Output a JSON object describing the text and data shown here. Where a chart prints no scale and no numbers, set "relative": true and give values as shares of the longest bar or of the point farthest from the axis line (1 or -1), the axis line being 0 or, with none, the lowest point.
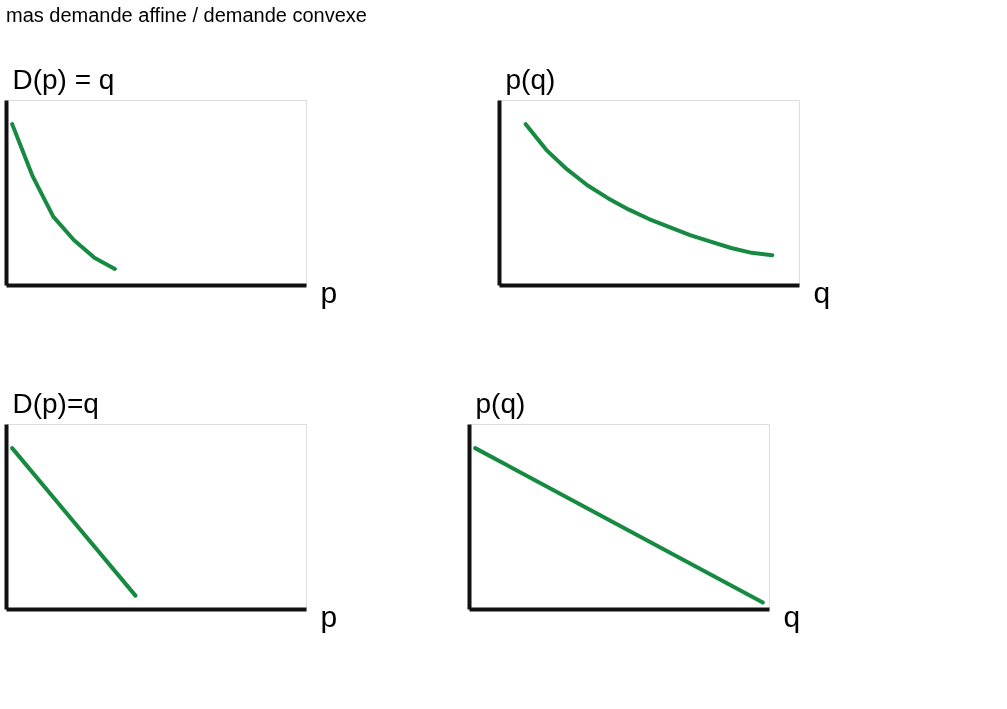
{
  "chart_data": [
    {
      "type": "line",
      "title": "mas demande affine / demande convexe",
      "relative": true,
      "ylabel": "D(p) = q",
      "xlabel": "p",
      "tick_labels": false,
      "grid": false,
      "marker": "none",
      "line_style": "solid",
      "categories": [
        null,
        null,
        null,
        null,
        null,
        null,
        null,
        null,
        null,
        null,
        null,
        null,
        null,
        null,
        null
      ],
      "series": [
        {
          "color": "#168a40",
          "values": [
            1.0,
            0.675,
            0.425,
            0.28,
            0.17,
            0.1,
            null,
            null,
            null,
            null,
            null,
            null,
            null,
            null,
            null
          ]
        }
      ]
    },
    {
      "type": "line",
      "relative": true,
      "ylabel": "p(q)",
      "xlabel": "q",
      "tick_labels": false,
      "grid": false,
      "marker": "none",
      "line_style": "solid",
      "categories": [
        null,
        null,
        null,
        null,
        null,
        null,
        null,
        null,
        null,
        null,
        null,
        null,
        null,
        null,
        null
      ],
      "series": [
        {
          "color": "#168a40",
          "values": [
            null,
            1.0,
            0.84,
            0.72,
            0.62,
            0.54,
            0.47,
            0.41,
            0.36,
            0.31,
            0.27,
            0.23,
            0.2,
            0.185,
            null
          ]
        }
      ]
    },
    {
      "type": "line",
      "relative": true,
      "ylabel": "D(p)=q",
      "xlabel": "p",
      "tick_labels": false,
      "grid": false,
      "marker": "none",
      "line_style": "solid",
      "categories": [
        null,
        null,
        null,
        null,
        null,
        null,
        null,
        null,
        null,
        null,
        null,
        null,
        null,
        null,
        null
      ],
      "series": [
        {
          "color": "#168a40",
          "values": [
            1.0,
            null,
            null,
            null,
            null,
            null,
            0.083,
            null,
            null,
            null,
            null,
            null,
            null,
            null,
            null
          ]
        }
      ]
    },
    {
      "type": "line",
      "relative": true,
      "ylabel": "p(q)",
      "xlabel": "q",
      "tick_labels": false,
      "grid": false,
      "marker": "none",
      "line_style": "solid",
      "categories": [
        null,
        null,
        null,
        null,
        null,
        null,
        null,
        null,
        null,
        null,
        null,
        null,
        null,
        null,
        null
      ],
      "series": [
        {
          "color": "#168a40",
          "values": [
            1.0,
            null,
            null,
            null,
            null,
            null,
            null,
            null,
            null,
            null,
            null,
            null,
            null,
            null,
            0.04
          ]
        }
      ]
    }
  ]
}
